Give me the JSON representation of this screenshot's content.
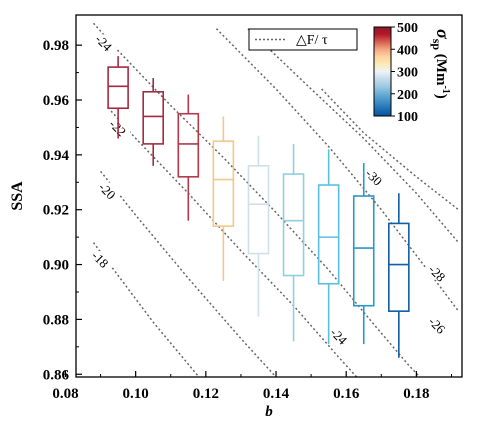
{
  "chart_data": {
    "type": "boxplot",
    "xlabel": "b",
    "ylabel": "SSA",
    "xlim": [
      0.083,
      0.193
    ],
    "ylim": [
      0.859,
      0.991
    ],
    "xticks": [
      0.08,
      0.1,
      0.12,
      0.14,
      0.16,
      0.18
    ],
    "xtick_labels": [
      "0.08",
      "0.10",
      "0.12",
      "0.14",
      "0.16",
      "0.18"
    ],
    "yticks": [
      0.86,
      0.88,
      0.9,
      0.92,
      0.94,
      0.96,
      0.98
    ],
    "ytick_labels": [
      "0.86",
      "0.88",
      "0.90",
      "0.92",
      "0.94",
      "0.96",
      "0.98"
    ],
    "grid": false,
    "legend": {
      "label": "△F/ τ",
      "placement": "top-center",
      "line_style": "dotted",
      "line_color": "#666666"
    },
    "colorbar": {
      "label": "σsp (Mm-1)",
      "label_main": "σ",
      "label_sub": "sp",
      "label_rest": " (Mm",
      "label_sup": "-1",
      "label_close": ")",
      "ticks": [
        100,
        200,
        300,
        400,
        500
      ],
      "tick_labels": [
        "100",
        "200",
        "300",
        "400",
        "500"
      ],
      "range": [
        100,
        500
      ],
      "colors": [
        "#08519c",
        "#2171b5",
        "#4292c6",
        "#6baed6",
        "#9ecae1",
        "#c6dbef",
        "#eef4f6",
        "#fde9b8",
        "#fdd49e",
        "#f4a582",
        "#d6604d",
        "#b2182b",
        "#8b1a2b"
      ],
      "placement": "top-right"
    },
    "boxes": [
      {
        "x": 0.095,
        "whisker_low": 0.946,
        "q1": 0.957,
        "median": 0.965,
        "q3": 0.972,
        "whisker_high": 0.976,
        "color": "#a52a3f"
      },
      {
        "x": 0.105,
        "whisker_low": 0.936,
        "q1": 0.944,
        "median": 0.954,
        "q3": 0.963,
        "whisker_high": 0.968,
        "color": "#a02d42"
      },
      {
        "x": 0.115,
        "whisker_low": 0.916,
        "q1": 0.932,
        "median": 0.944,
        "q3": 0.955,
        "whisker_high": 0.962,
        "color": "#b23a4a"
      },
      {
        "x": 0.125,
        "whisker_low": 0.894,
        "q1": 0.914,
        "median": 0.931,
        "q3": 0.945,
        "whisker_high": 0.954,
        "color": "#f2c88a"
      },
      {
        "x": 0.135,
        "whisker_low": 0.881,
        "q1": 0.904,
        "median": 0.922,
        "q3": 0.936,
        "whisker_high": 0.947,
        "color": "#cfe0ea"
      },
      {
        "x": 0.145,
        "whisker_low": 0.872,
        "q1": 0.896,
        "median": 0.916,
        "q3": 0.933,
        "whisker_high": 0.944,
        "color": "#8fcfe0"
      },
      {
        "x": 0.155,
        "whisker_low": 0.871,
        "q1": 0.893,
        "median": 0.91,
        "q3": 0.929,
        "whisker_high": 0.942,
        "color": "#5bbfdc"
      },
      {
        "x": 0.165,
        "whisker_low": 0.871,
        "q1": 0.885,
        "median": 0.906,
        "q3": 0.925,
        "whisker_high": 0.937,
        "color": "#2b97c9"
      },
      {
        "x": 0.175,
        "whisker_low": 0.866,
        "q1": 0.883,
        "median": 0.9,
        "q3": 0.915,
        "whisker_high": 0.926,
        "color": "#0f5ea8"
      }
    ],
    "contours": [
      {
        "label": "-18",
        "label_at": [
          0.09,
          0.902
        ],
        "points": [
          [
            0.088,
            0.908
          ],
          [
            0.095,
            0.896
          ],
          [
            0.105,
            0.879
          ],
          [
            0.12,
            0.856
          ]
        ]
      },
      {
        "label": "-20",
        "label_at": [
          0.092,
          0.927
        ],
        "points": [
          [
            0.09,
            0.934
          ],
          [
            0.1,
            0.918
          ],
          [
            0.115,
            0.895
          ],
          [
            0.13,
            0.873
          ],
          [
            0.14,
            0.859
          ]
        ]
      },
      {
        "label": "-22",
        "label_at": [
          0.095,
          0.95
        ],
        "points": [
          [
            0.093,
            0.956
          ],
          [
            0.1,
            0.946
          ],
          [
            0.115,
            0.926
          ],
          [
            0.13,
            0.905
          ],
          [
            0.145,
            0.885
          ],
          [
            0.158,
            0.866
          ],
          [
            0.163,
            0.859
          ]
        ]
      },
      {
        "label": "-24",
        "label_at": [
          0.091,
          0.981
        ],
        "points": [
          [
            0.088,
            0.988
          ],
          [
            0.095,
            0.978
          ],
          [
            0.11,
            0.958
          ],
          [
            0.125,
            0.939
          ],
          [
            0.14,
            0.919
          ],
          [
            0.155,
            0.898
          ],
          [
            0.168,
            0.878
          ],
          [
            0.178,
            0.863
          ],
          [
            0.181,
            0.859
          ]
        ]
      },
      {
        "label": "-24",
        "label_at": [
          0.158,
          0.874
        ],
        "points": []
      },
      {
        "label": "-26",
        "label_at": [
          0.186,
          0.878
        ],
        "points": [
          [
            0.123,
            0.986
          ],
          [
            0.14,
            0.964
          ],
          [
            0.155,
            0.943
          ],
          [
            0.17,
            0.92
          ],
          [
            0.182,
            0.9
          ],
          [
            0.192,
            0.883
          ]
        ]
      },
      {
        "label": "-28",
        "label_at": [
          0.186,
          0.897
        ],
        "points": [
          [
            0.132,
            0.986
          ],
          [
            0.15,
            0.964
          ],
          [
            0.165,
            0.946
          ],
          [
            0.18,
            0.926
          ],
          [
            0.192,
            0.908
          ]
        ]
      },
      {
        "label": "-30",
        "label_at": [
          0.168,
          0.932
        ],
        "points": [
          [
            0.153,
            0.964
          ],
          [
            0.165,
            0.948
          ],
          [
            0.18,
            0.932
          ],
          [
            0.192,
            0.92
          ]
        ]
      }
    ]
  }
}
